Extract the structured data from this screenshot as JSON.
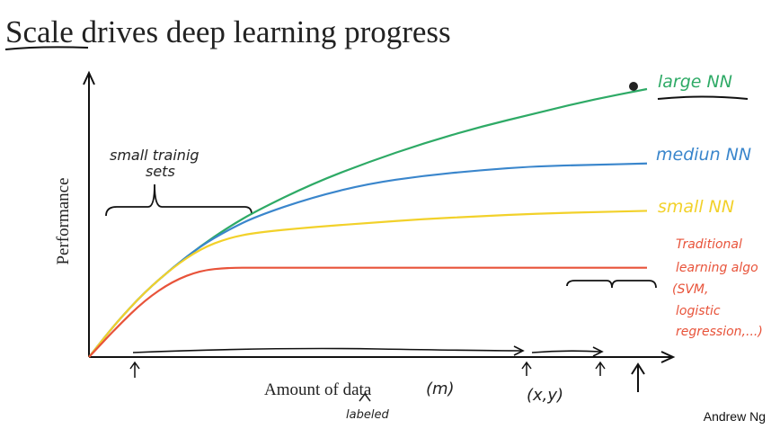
{
  "slide": {
    "title_underlined": "Scale",
    "title_rest": " drives deep learning progress",
    "author": "Andrew Ng"
  },
  "chart_data": {
    "type": "line",
    "ylabel": "Performance",
    "xlabel": "Amount of data",
    "xlabel_note": "(m)",
    "xlabel_sub": "labeled",
    "pair_note": "(x,y)",
    "bracket_note_line1": "small trainig",
    "bracket_note_line2": "sets",
    "series": [
      {
        "name": "large NN",
        "color": "#2eaa66",
        "x": [
          0,
          0.05,
          0.1,
          0.15,
          0.2,
          0.25,
          0.3,
          0.4,
          0.5,
          0.6,
          0.7,
          0.8,
          0.9,
          1.0
        ],
        "y": [
          0,
          0.13,
          0.24,
          0.33,
          0.41,
          0.48,
          0.54,
          0.64,
          0.72,
          0.79,
          0.85,
          0.9,
          0.95,
          0.99
        ]
      },
      {
        "name": "mediun NN",
        "color": "#3a86cc",
        "x": [
          0,
          0.05,
          0.1,
          0.15,
          0.2,
          0.25,
          0.3,
          0.4,
          0.5,
          0.6,
          0.7,
          0.8,
          0.9,
          1.0
        ],
        "y": [
          0,
          0.13,
          0.24,
          0.33,
          0.41,
          0.47,
          0.52,
          0.59,
          0.64,
          0.67,
          0.69,
          0.705,
          0.71,
          0.715
        ]
      },
      {
        "name": "small NN",
        "color": "#f2d12a",
        "x": [
          0,
          0.05,
          0.1,
          0.15,
          0.2,
          0.25,
          0.3,
          0.4,
          0.5,
          0.6,
          0.7,
          0.8,
          0.9,
          1.0
        ],
        "y": [
          0,
          0.13,
          0.24,
          0.33,
          0.4,
          0.44,
          0.46,
          0.48,
          0.495,
          0.51,
          0.52,
          0.53,
          0.535,
          0.54
        ]
      },
      {
        "name": "Traditional learning algo (SVM, logistic regression,...)",
        "label_lines": [
          "Traditional",
          "learning algo",
          "(SVM,",
          "logistic",
          "regression,...)"
        ],
        "color": "#e8533a",
        "x": [
          0,
          0.05,
          0.1,
          0.15,
          0.2,
          0.25,
          0.3,
          0.4,
          0.5,
          0.6,
          0.7,
          0.8,
          0.9,
          1.0
        ],
        "y": [
          0,
          0.11,
          0.21,
          0.28,
          0.32,
          0.33,
          0.33,
          0.33,
          0.33,
          0.33,
          0.33,
          0.33,
          0.33,
          0.33
        ]
      }
    ]
  }
}
